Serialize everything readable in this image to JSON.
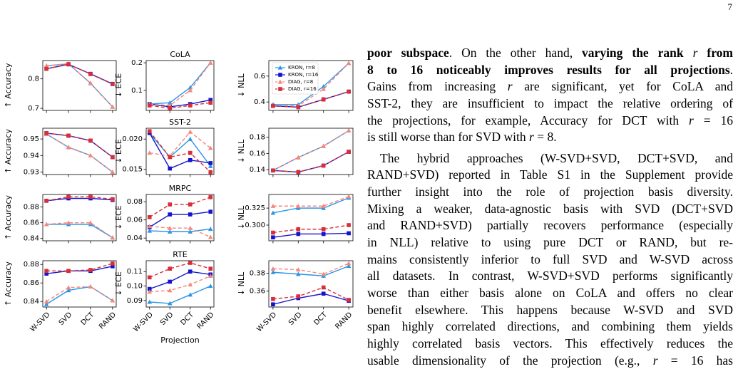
{
  "page_number": "7",
  "chart_data": [
    {
      "type": "line",
      "y_label": "↑ Accuracy",
      "ylim": [
        0.693,
        0.862
      ],
      "yticks": [
        0.7,
        0.8
      ],
      "series": [
        {
          "color": "#2b95e6",
          "marker": "triangle",
          "linestyle": "solid",
          "values": [
            0.844,
            0.851,
            0.785,
            0.705
          ]
        },
        {
          "color": "#1414cc",
          "marker": "square",
          "linestyle": "solid",
          "values": [
            0.834,
            0.849,
            0.817,
            0.783
          ]
        },
        {
          "color": "#f4877b",
          "marker": "triangle",
          "linestyle": "dashed",
          "values": [
            0.845,
            0.851,
            0.786,
            0.705
          ]
        },
        {
          "color": "#d62f3a",
          "marker": "square",
          "linestyle": "dashed",
          "values": [
            0.834,
            0.85,
            0.816,
            0.782
          ]
        }
      ]
    },
    {
      "type": "line",
      "title": "CoLA",
      "y_label": "↓ ECE",
      "ylim": [
        0.027,
        0.208
      ],
      "yticks": [
        0.1,
        0.2
      ],
      "series": [
        {
          "color": "#2b95e6",
          "marker": "triangle",
          "linestyle": "solid",
          "values": [
            0.05,
            0.055,
            0.11,
            0.2
          ]
        },
        {
          "color": "#1414cc",
          "marker": "square",
          "linestyle": "solid",
          "values": [
            0.05,
            0.04,
            0.05,
            0.065
          ]
        },
        {
          "color": "#f4877b",
          "marker": "triangle",
          "linestyle": "dashed",
          "values": [
            0.05,
            0.045,
            0.1,
            0.2
          ]
        },
        {
          "color": "#d62f3a",
          "marker": "square",
          "linestyle": "dashed",
          "values": [
            0.045,
            0.035,
            0.045,
            0.055
          ]
        }
      ]
    },
    {
      "type": "line",
      "y_label": "↓ NLL",
      "ylim": [
        0.335,
        0.72
      ],
      "yticks": [
        0.4,
        0.6
      ],
      "legend": "upper left",
      "series": [
        {
          "name": "KRON, r=8",
          "color": "#2b95e6",
          "marker": "triangle",
          "linestyle": "solid",
          "values": [
            0.38,
            0.38,
            0.52,
            0.7
          ]
        },
        {
          "name": "KRON, r=16",
          "color": "#1414cc",
          "marker": "square",
          "linestyle": "solid",
          "values": [
            0.37,
            0.36,
            0.42,
            0.48
          ]
        },
        {
          "name": "DIAG, r=8",
          "color": "#f4877b",
          "marker": "triangle",
          "linestyle": "dashed",
          "values": [
            0.37,
            0.37,
            0.5,
            0.7
          ]
        },
        {
          "name": "DIAG, r=16",
          "color": "#d62f3a",
          "marker": "square",
          "linestyle": "dashed",
          "values": [
            0.37,
            0.36,
            0.42,
            0.48
          ]
        }
      ]
    },
    {
      "type": "line",
      "y_label": "↑ Accuracy",
      "ylim": [
        0.9285,
        0.9565
      ],
      "yticks": [
        0.93,
        0.94,
        0.95
      ],
      "series": [
        {
          "color": "#2b95e6",
          "marker": "triangle",
          "linestyle": "solid",
          "values": [
            0.953,
            0.945,
            0.94,
            0.93
          ]
        },
        {
          "color": "#1414cc",
          "marker": "square",
          "linestyle": "solid",
          "values": [
            0.9535,
            0.952,
            0.949,
            0.939
          ]
        },
        {
          "color": "#f4877b",
          "marker": "triangle",
          "linestyle": "dashed",
          "values": [
            0.953,
            0.945,
            0.94,
            0.93
          ]
        },
        {
          "color": "#d62f3a",
          "marker": "square",
          "linestyle": "dashed",
          "values": [
            0.9535,
            0.952,
            0.949,
            0.939
          ]
        }
      ]
    },
    {
      "type": "line",
      "title": "SST-2",
      "y_label": "↓ ECE",
      "ylim": [
        0.0141,
        0.0218
      ],
      "yticks": [
        0.015,
        {
          "value": 0.02,
          "label": "0.020"
        }
      ],
      "series": [
        {
          "color": "#2b95e6",
          "marker": "triangle",
          "linestyle": "solid",
          "values": [
            0.021,
            0.017,
            0.02,
            0.0155
          ]
        },
        {
          "color": "#1414cc",
          "marker": "square",
          "linestyle": "solid",
          "values": [
            0.021,
            0.0151,
            0.0165,
            0.016
          ]
        },
        {
          "color": "#f4877b",
          "marker": "triangle",
          "linestyle": "dashed",
          "values": [
            0.0177,
            0.0172,
            0.0212,
            0.0185
          ]
        },
        {
          "color": "#d62f3a",
          "marker": "square",
          "linestyle": "dashed",
          "values": [
            0.0213,
            0.017,
            0.0177,
            0.0145
          ]
        }
      ]
    },
    {
      "type": "line",
      "y_label": "↓ NLL",
      "ylim": [
        0.134,
        0.191
      ],
      "yticks": [
        0.14,
        0.16,
        0.18
      ],
      "series": [
        {
          "color": "#2b95e6",
          "marker": "triangle",
          "linestyle": "solid",
          "values": [
            0.139,
            0.155,
            0.169,
            0.188
          ]
        },
        {
          "color": "#1414cc",
          "marker": "square",
          "linestyle": "solid",
          "values": [
            0.139,
            0.137,
            0.145,
            0.162
          ]
        },
        {
          "color": "#f4877b",
          "marker": "triangle",
          "linestyle": "dashed",
          "values": [
            0.139,
            0.155,
            0.169,
            0.188
          ]
        },
        {
          "color": "#d62f3a",
          "marker": "square",
          "linestyle": "dashed",
          "values": [
            0.139,
            0.137,
            0.145,
            0.162
          ]
        }
      ]
    },
    {
      "type": "line",
      "y_label": "↑ Accuracy",
      "ylim": [
        0.837,
        0.896
      ],
      "yticks": [
        0.84,
        0.86,
        0.88
      ],
      "series": [
        {
          "color": "#2b95e6",
          "marker": "triangle",
          "linestyle": "solid",
          "values": [
            0.858,
            0.858,
            0.858,
            0.841
          ]
        },
        {
          "color": "#1414cc",
          "marker": "square",
          "linestyle": "solid",
          "values": [
            0.888,
            0.891,
            0.891,
            0.889
          ]
        },
        {
          "color": "#f4877b",
          "marker": "triangle",
          "linestyle": "dashed",
          "values": [
            0.858,
            0.86,
            0.86,
            0.841
          ]
        },
        {
          "color": "#d62f3a",
          "marker": "square",
          "linestyle": "dashed",
          "values": [
            0.888,
            0.893,
            0.893,
            0.89
          ]
        }
      ]
    },
    {
      "type": "line",
      "title": "MRPC",
      "y_label": "↓ ECE",
      "ylim": [
        0.037,
        0.088
      ],
      "yticks": [
        0.04,
        0.06,
        0.08
      ],
      "series": [
        {
          "color": "#2b95e6",
          "marker": "triangle",
          "linestyle": "solid",
          "values": [
            0.048,
            0.047,
            0.047,
            0.05
          ]
        },
        {
          "color": "#1414cc",
          "marker": "square",
          "linestyle": "solid",
          "values": [
            0.052,
            0.066,
            0.066,
            0.069
          ]
        },
        {
          "color": "#f4877b",
          "marker": "triangle",
          "linestyle": "dashed",
          "values": [
            0.053,
            0.051,
            0.051,
            0.041
          ]
        },
        {
          "color": "#d62f3a",
          "marker": "square",
          "linestyle": "dashed",
          "values": [
            0.063,
            0.077,
            0.077,
            0.085
          ]
        }
      ]
    },
    {
      "type": "line",
      "y_label": "↓ NLL",
      "ylim": [
        0.277,
        0.345
      ],
      "yticks": [
        {
          "value": 0.3,
          "label": "0.300"
        },
        0.325
      ],
      "series": [
        {
          "color": "#2b95e6",
          "marker": "triangle",
          "linestyle": "solid",
          "values": [
            0.318,
            0.325,
            0.325,
            0.34
          ]
        },
        {
          "color": "#1414cc",
          "marker": "square",
          "linestyle": "solid",
          "values": [
            0.282,
            0.287,
            0.287,
            0.288
          ]
        },
        {
          "color": "#f4877b",
          "marker": "triangle",
          "linestyle": "dashed",
          "values": [
            0.328,
            0.328,
            0.328,
            0.342
          ]
        },
        {
          "color": "#d62f3a",
          "marker": "square",
          "linestyle": "dashed",
          "values": [
            0.289,
            0.294,
            0.294,
            0.3
          ]
        }
      ]
    },
    {
      "type": "line",
      "y_label": "↑ Accuracy",
      "ylim": [
        0.834,
        0.884
      ],
      "yticks": [
        0.84,
        0.86,
        0.88
      ],
      "categories": [
        "W-SVD",
        "SVD",
        "DCT",
        "RAND"
      ],
      "series": [
        {
          "color": "#2b95e6",
          "marker": "triangle",
          "linestyle": "solid",
          "values": [
            0.837,
            0.852,
            0.856,
            0.841
          ]
        },
        {
          "color": "#1414cc",
          "marker": "square",
          "linestyle": "solid",
          "values": [
            0.87,
            0.873,
            0.873,
            0.878
          ]
        },
        {
          "color": "#f4877b",
          "marker": "triangle",
          "linestyle": "dashed",
          "values": [
            0.84,
            0.855,
            0.856,
            0.841
          ]
        },
        {
          "color": "#d62f3a",
          "marker": "square",
          "linestyle": "dashed",
          "values": [
            0.873,
            0.873,
            0.874,
            0.881
          ]
        }
      ]
    },
    {
      "type": "line",
      "title": "RTE",
      "y_label": "↓ ECE",
      "x_label": "Projection",
      "ylim": [
        0.0855,
        0.1175
      ],
      "yticks": [
        0.09,
        {
          "value": 0.1,
          "label": "0.10"
        },
        0.11
      ],
      "categories": [
        "W-SVD",
        "SVD",
        "DCT",
        "RAND"
      ],
      "series": [
        {
          "color": "#2b95e6",
          "marker": "triangle",
          "linestyle": "solid",
          "values": [
            0.089,
            0.088,
            0.094,
            0.1
          ]
        },
        {
          "color": "#1414cc",
          "marker": "square",
          "linestyle": "solid",
          "values": [
            0.098,
            0.103,
            0.11,
            0.108
          ]
        },
        {
          "color": "#f4877b",
          "marker": "triangle",
          "linestyle": "dashed",
          "values": [
            0.096,
            0.097,
            0.101,
            0.107
          ]
        },
        {
          "color": "#d62f3a",
          "marker": "square",
          "linestyle": "dashed",
          "values": [
            0.106,
            0.112,
            0.116,
            0.112
          ]
        }
      ]
    },
    {
      "type": "line",
      "y_label": "↓ NLL",
      "ylim": [
        0.342,
        0.394
      ],
      "yticks": [
        0.36,
        0.38
      ],
      "categories": [
        "W-SVD",
        "SVD",
        "DCT",
        "RAND"
      ],
      "series": [
        {
          "color": "#2b95e6",
          "marker": "triangle",
          "linestyle": "solid",
          "values": [
            0.381,
            0.379,
            0.377,
            0.388
          ]
        },
        {
          "color": "#1414cc",
          "marker": "square",
          "linestyle": "solid",
          "values": [
            0.345,
            0.352,
            0.357,
            0.349
          ]
        },
        {
          "color": "#f4877b",
          "marker": "triangle",
          "linestyle": "dashed",
          "values": [
            0.385,
            0.384,
            0.379,
            0.391
          ]
        },
        {
          "color": "#d62f3a",
          "marker": "square",
          "linestyle": "dashed",
          "values": [
            0.351,
            0.354,
            0.364,
            0.35
          ]
        }
      ]
    }
  ],
  "text": {
    "paragraphs": [
      {
        "lines": [
          [
            {
              "text": "poor subspace",
              "bold": true
            },
            {
              "text": ". On the other hand, "
            },
            {
              "text": "varying the rank ",
              "bold": true
            },
            {
              "text": "r",
              "italic": true
            },
            {
              "text": " from",
              "bold": true
            }
          ],
          [
            {
              "text": "8 to 16 noticeably improves results for all projections",
              "bold": true
            },
            {
              "text": "."
            }
          ],
          [
            {
              "text": "Gains from increasing "
            },
            {
              "text": "r",
              "italic": true
            },
            {
              "text": " are significant, yet for CoLA and"
            }
          ],
          [
            {
              "text": "SST-2, they are insufficient to impact the relative ordering of"
            }
          ],
          [
            {
              "text": "the projections, for example, Accuracy for DCT with "
            },
            {
              "text": "r",
              "italic": true
            },
            {
              "text": " = 16"
            }
          ],
          [
            {
              "text": "is still worse than for SVD with "
            },
            {
              "text": "r",
              "italic": true
            },
            {
              "text": " = 8."
            }
          ]
        ]
      },
      {
        "lines": [
          [
            {
              "text": "The hybrid approaches (W-SVD+SVD, DCT+SVD, and"
            }
          ],
          [
            {
              "text": "RAND+SVD) reported in Table S1 in the Supplement provide"
            }
          ],
          [
            {
              "text": "further insight into the role of projection basis diversity."
            }
          ],
          [
            {
              "text": "Mixing a weaker, data-agnostic basis with SVD (DCT+SVD"
            }
          ],
          [
            {
              "text": "and RAND+SVD) partially recovers performance (especially"
            }
          ],
          [
            {
              "text": "in NLL) relative to using pure DCT or RAND, but re-"
            }
          ],
          [
            {
              "text": "mains consistently inferior to full SVD and W-SVD across"
            }
          ],
          [
            {
              "text": "all datasets. In contrast, W-SVD+SVD performs significantly"
            }
          ],
          [
            {
              "text": "worse than either basis alone on CoLA and offers no clear"
            }
          ],
          [
            {
              "text": "benefit elsewhere. This happens because W-SVD and SVD"
            }
          ],
          [
            {
              "text": "span highly correlated directions, and combining them yields"
            }
          ],
          [
            {
              "text": "highly correlated basis vectors. This effectively reduces the"
            }
          ],
          [
            {
              "text": "usable dimensionality of the projection (e.g., "
            },
            {
              "text": "r",
              "italic": true
            },
            {
              "text": " = 16 has"
            }
          ]
        ]
      }
    ]
  }
}
